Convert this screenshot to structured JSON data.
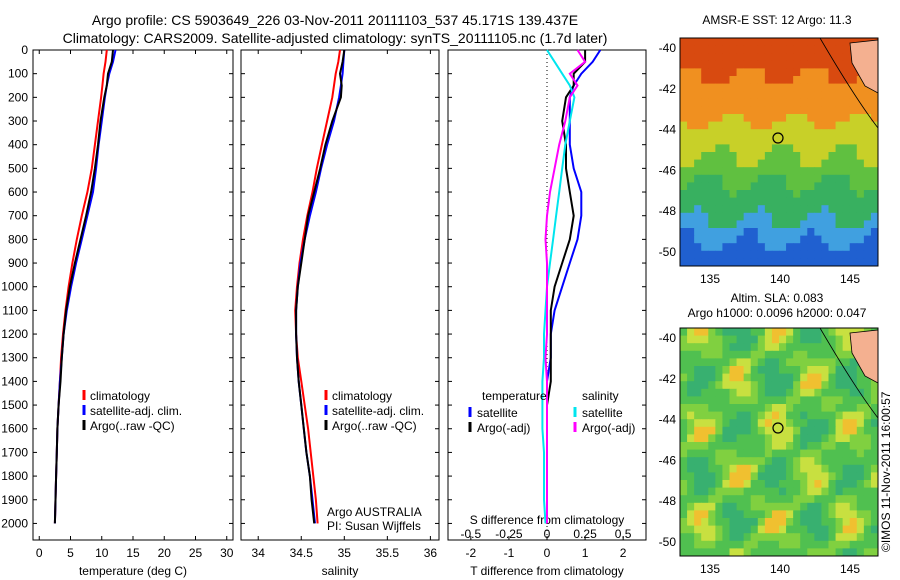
{
  "header": {
    "line1": "Argo profile: CS 5903649_226 03-Nov-2011 20111103_537 45.171S 139.437E",
    "line2": "Climatology: CARS2009. Satellite-adjusted climatology: synTS_20111105.nc (1.7d later)"
  },
  "colors": {
    "climatology": "#ff0000",
    "satellite": "#0000ff",
    "argo": "#000000",
    "satellite_salinity": "#00e5ee",
    "argo_salinity_diff": "#ff00ff"
  },
  "chart_data": [
    {
      "type": "line",
      "panel": "temperature",
      "xlabel": "temperature (deg C)",
      "ylabel": "",
      "xlim": [
        -1,
        31
      ],
      "ylim": [
        2070,
        0
      ],
      "xticks": [
        "0",
        "5",
        "10",
        "15",
        "20",
        "25",
        "30"
      ],
      "yticks": [
        "0",
        "100",
        "200",
        "300",
        "400",
        "500",
        "600",
        "700",
        "800",
        "900",
        "1000",
        "1100",
        "1200",
        "1300",
        "1400",
        "1500",
        "1600",
        "1700",
        "1800",
        "1900",
        "2000"
      ],
      "depth": [
        0,
        50,
        100,
        150,
        200,
        300,
        400,
        500,
        600,
        700,
        800,
        900,
        1000,
        1100,
        1200,
        1300,
        1400,
        1500,
        1600,
        1700,
        1800,
        1900,
        2000
      ],
      "series": [
        {
          "name": "climatology",
          "values": [
            10.8,
            10.6,
            10.3,
            10.1,
            9.9,
            9.4,
            8.9,
            8.4,
            7.7,
            6.8,
            6.0,
            5.3,
            4.7,
            4.2,
            3.8,
            3.5,
            3.3,
            3.1,
            2.9,
            2.8,
            2.7,
            2.6,
            2.5
          ]
        },
        {
          "name": "satellite-adj. clim.",
          "values": [
            12.2,
            11.8,
            11.2,
            10.8,
            10.5,
            10.0,
            9.5,
            9.1,
            8.6,
            7.7,
            6.8,
            5.9,
            5.1,
            4.4,
            3.9,
            3.6,
            3.3,
            3.1,
            2.9,
            2.8,
            2.7,
            2.6,
            2.5
          ]
        },
        {
          "name": "Argo(..raw -QC)",
          "values": [
            11.8,
            11.6,
            11.0,
            10.8,
            10.4,
            9.8,
            9.4,
            8.9,
            8.3,
            7.5,
            6.6,
            5.7,
            4.9,
            4.3,
            3.9,
            3.6,
            3.4,
            3.1,
            2.9,
            2.8,
            2.7,
            2.6,
            2.5
          ]
        }
      ],
      "legend": {
        "position": "center",
        "items": [
          "climatology",
          "satellite-adj. clim.",
          "Argo(..raw -QC)"
        ]
      }
    },
    {
      "type": "line",
      "panel": "salinity",
      "xlabel": "salinity",
      "xlim": [
        33.8,
        36.1
      ],
      "ylim": [
        2070,
        0
      ],
      "xticks": [
        "34",
        "34.5",
        "35",
        "35.5",
        "36"
      ],
      "depth": [
        0,
        50,
        100,
        150,
        200,
        300,
        400,
        500,
        600,
        700,
        800,
        900,
        1000,
        1100,
        1200,
        1300,
        1400,
        1500,
        1600,
        1700,
        1800,
        1900,
        2000
      ],
      "series": [
        {
          "name": "climatology",
          "values": [
            34.95,
            34.93,
            34.9,
            34.88,
            34.86,
            34.8,
            34.74,
            34.68,
            34.63,
            34.57,
            34.52,
            34.48,
            34.45,
            34.43,
            34.44,
            34.46,
            34.5,
            34.54,
            34.58,
            34.61,
            34.64,
            34.67,
            34.69
          ]
        },
        {
          "name": "satellite-adj. clim.",
          "values": [
            35.0,
            34.99,
            34.98,
            34.96,
            34.94,
            34.88,
            34.8,
            34.73,
            34.67,
            34.6,
            34.54,
            34.49,
            34.46,
            34.44,
            34.44,
            34.45,
            34.47,
            34.5,
            34.53,
            34.56,
            34.6,
            34.63,
            34.66
          ]
        },
        {
          "name": "Argo(..raw -QC)",
          "values": [
            35.0,
            34.98,
            34.95,
            34.97,
            34.96,
            34.86,
            34.78,
            34.72,
            34.65,
            34.58,
            34.54,
            34.5,
            34.46,
            34.44,
            34.44,
            34.45,
            34.47,
            34.5,
            34.53,
            34.56,
            34.6,
            34.62,
            34.65
          ]
        }
      ],
      "legend": {
        "position": "center",
        "items": [
          "climatology",
          "satellite-adj. clim.",
          "Argo(..raw -QC)"
        ]
      },
      "annotation": [
        "Argo AUSTRALIA",
        "PI: Susan Wijffels"
      ]
    },
    {
      "type": "line",
      "panel": "difference",
      "xlabel": "T difference from climatology",
      "xlabel_top": "S difference from climatology",
      "xlim": [
        -2.6,
        2.6
      ],
      "ylim": [
        2070,
        0
      ],
      "xticks": [
        "-2",
        "-1",
        "0",
        "1",
        "2"
      ],
      "xticks_s": [
        "-0.5",
        "-0.25",
        "0",
        "0.25",
        "0.5"
      ],
      "depth": [
        0,
        50,
        100,
        150,
        200,
        300,
        400,
        500,
        600,
        700,
        800,
        900,
        1000,
        1100,
        1200,
        1300,
        1400,
        1500,
        1600,
        1700,
        1800,
        1900,
        2000
      ],
      "series": [
        {
          "name": "temperature satellite",
          "values": [
            1.4,
            1.2,
            0.9,
            0.7,
            0.6,
            0.6,
            0.6,
            0.7,
            0.9,
            0.9,
            0.8,
            0.6,
            0.4,
            0.2,
            0.1,
            0.1,
            0.0,
            0.0,
            0.0,
            0.0,
            0.0,
            0.0,
            0.0
          ]
        },
        {
          "name": "temperature Argo(-adj)",
          "values": [
            1.0,
            1.0,
            0.7,
            0.7,
            0.5,
            0.4,
            0.5,
            0.5,
            0.6,
            0.7,
            0.6,
            0.4,
            0.2,
            0.1,
            0.1,
            0.1,
            0.1,
            0.0,
            0.0,
            0.0,
            0.0,
            0.0,
            0.0
          ]
        },
        {
          "name": "salinity satellite",
          "values": [
            0.0,
            0.05,
            0.1,
            0.15,
            0.18,
            0.15,
            0.12,
            0.1,
            0.08,
            0.06,
            0.04,
            0.02,
            0.0,
            -0.01,
            -0.02,
            -0.02,
            -0.03,
            -0.03,
            -0.03,
            -0.02,
            -0.02,
            -0.02,
            -0.01
          ]
        },
        {
          "name": "salinity Argo(-adj)",
          "values": [
            0.2,
            0.25,
            0.15,
            0.2,
            0.15,
            0.12,
            0.08,
            0.05,
            0.02,
            0.0,
            -0.01,
            0.0,
            0.0,
            0.0,
            0.0,
            -0.01,
            0.0,
            0.0,
            0.0,
            0.0,
            0.0,
            0.0,
            0.0
          ]
        }
      ],
      "legend": {
        "position": "center",
        "temperature_title": "temperature",
        "salinity_title": "salinity",
        "items": [
          "satellite",
          "Argo(-adj)",
          "satellite",
          "Argo(-adj)"
        ]
      }
    }
  ],
  "maps": {
    "sst": {
      "title": "AMSR-E SST: 12 Argo: 11.3",
      "yticks": [
        "-40",
        "-42",
        "-44",
        "-46",
        "-48",
        "-50"
      ],
      "xticks": [
        "135",
        "140",
        "145"
      ]
    },
    "sla": {
      "title_line1": "Altim. SLA: 0.083",
      "title_line2": "Argo h1000: 0.0096 h2000: 0.047",
      "yticks": [
        "-40",
        "-42",
        "-44",
        "-46",
        "-48",
        "-50"
      ],
      "xticks": [
        "135",
        "140",
        "145"
      ]
    }
  },
  "footer": {
    "credit": "©IMOS 11-Nov-2011 16:00:57"
  }
}
